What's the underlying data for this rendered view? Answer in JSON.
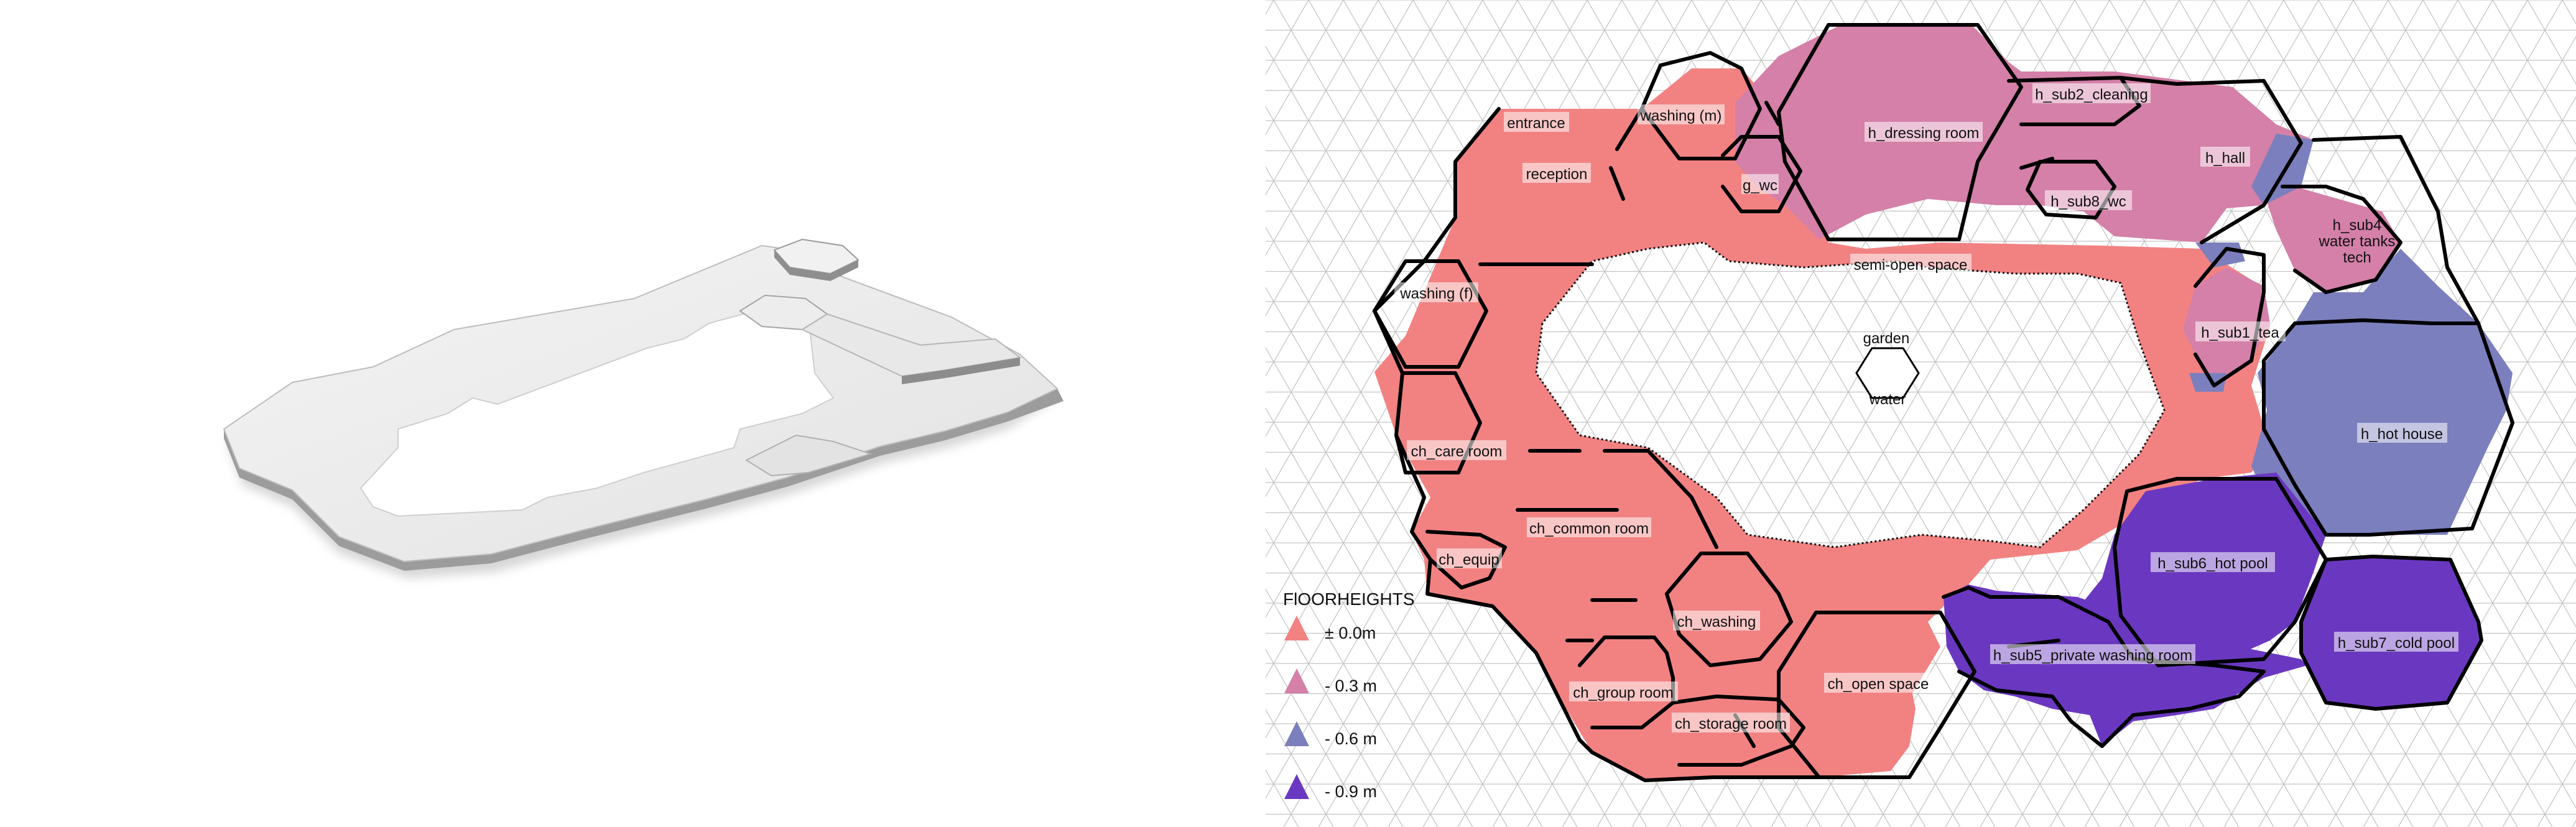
{
  "colors": {
    "floor_0": "#f28282",
    "floor_03": "#d480a8",
    "floor_06": "#7b7fbd",
    "floor_09": "#6a38c0",
    "wall": "#000000",
    "grid": "#c4c4c4"
  },
  "rooms": {
    "entrance": "entrance",
    "washing_m": "washing (m)",
    "reception": "reception",
    "g_wc": "g_wc",
    "h_dressing_room": "h_dressing room",
    "h_sub2_cleaning": "h_sub2_cleaning",
    "h_hall": "h_hall",
    "h_sub8_wc": "h_sub8_wc",
    "h_sub4": [
      "h_sub4",
      "water tanks",
      "tech"
    ],
    "semi_open_space": "semi-open space",
    "washing_f": "washing (f)",
    "garden": "garden",
    "h_sub1_tea": "h_sub1_tea",
    "water": "water",
    "h_hot_house": "h_hot house",
    "ch_care_room": "ch_care room",
    "ch_common_room": "ch_common room",
    "ch_equip": "ch_equip",
    "h_sub6_hot_pool": "h_sub6_hot pool",
    "ch_washing": "ch_washing",
    "h_sub5_private_washing_room": "h_sub5_private washing room",
    "h_sub7_cold_pool": "h_sub7_cold pool",
    "ch_open_space": "ch_open space",
    "ch_group_room": "ch_group room",
    "ch_storage_room": "ch_storage room"
  },
  "legend": {
    "title": "FlOORHEIGHTS",
    "items": [
      {
        "label": "± 0.0m",
        "color": "#f28282"
      },
      {
        "label": "- 0.3 m",
        "color": "#d480a8"
      },
      {
        "label": "- 0.6 m",
        "color": "#7b7fbd"
      },
      {
        "label": "- 0.9 m",
        "color": "#6a38c0"
      }
    ]
  }
}
